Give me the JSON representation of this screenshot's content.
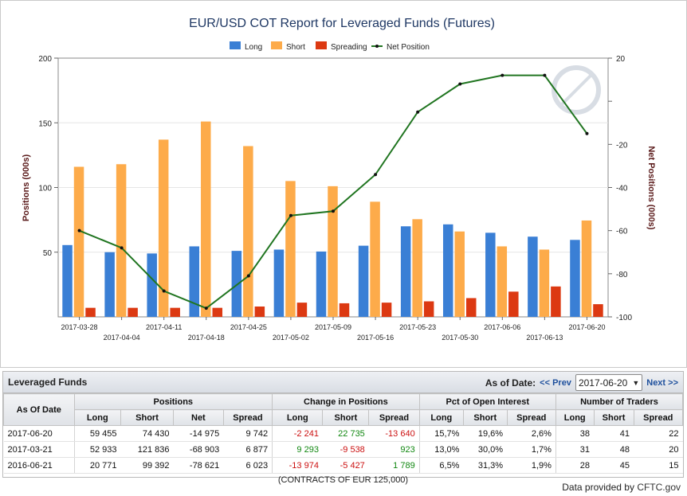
{
  "chart_data": {
    "type": "bar",
    "title": "EUR/USD COT Report for Leveraged Funds (Futures)",
    "ylabel": "Positions (000s)",
    "y2label": "Net Positions (000s)",
    "ylim": [
      0,
      200
    ],
    "y2lim": [
      -100,
      20
    ],
    "yticks": [
      50,
      100,
      150,
      200
    ],
    "y2ticks": [
      -100,
      -80,
      -60,
      -40,
      -20,
      20
    ],
    "categories": [
      "2017-03-28",
      "2017-04-04",
      "2017-04-11",
      "2017-04-18",
      "2017-04-25",
      "2017-05-02",
      "2017-05-09",
      "2017-05-16",
      "2017-05-23",
      "2017-05-30",
      "2017-06-06",
      "2017-06-13",
      "2017-06-20"
    ],
    "series": [
      {
        "name": "Long",
        "type": "bar",
        "color": "#3a7fd5",
        "values": [
          55.5,
          50,
          49,
          54.5,
          51,
          52,
          50.5,
          55,
          70,
          71.5,
          65,
          62,
          59.5
        ]
      },
      {
        "name": "Short",
        "type": "bar",
        "color": "#fdab4a",
        "values": [
          116,
          118,
          137,
          151,
          132,
          105,
          101,
          89,
          75.5,
          66,
          54.5,
          52,
          74.5
        ]
      },
      {
        "name": "Spreading",
        "type": "bar",
        "color": "#dc3912",
        "values": [
          7,
          7,
          7,
          7,
          8,
          11,
          10.5,
          11,
          12,
          14.5,
          19.5,
          23.5,
          9.8
        ]
      },
      {
        "name": "Net Position",
        "type": "line",
        "axis": "right",
        "color": "#207520",
        "values": [
          -60,
          -68,
          -88,
          -96,
          -81,
          -53,
          -51,
          -34,
          -5,
          8,
          12,
          12,
          -15
        ]
      }
    ],
    "legend": "top"
  },
  "panel": {
    "title": "Leveraged Funds",
    "as_of_label": "As of Date:",
    "prev_label": "<< Prev",
    "selected_date": "2017-06-20",
    "next_label": "Next >>",
    "groups": {
      "as_of": "As Of Date",
      "positions": "Positions",
      "change": "Change in Positions",
      "pct": "Pct of Open Interest",
      "traders": "Number of Traders"
    },
    "sub": {
      "long": "Long",
      "short": "Short",
      "net": "Net",
      "spread": "Spread"
    },
    "rows": [
      {
        "date": "2017-06-20",
        "pos_long": "59 455",
        "pos_short": "74 430",
        "pos_net": "-14 975",
        "pos_spread": "9 742",
        "chg_long": "-2 241",
        "chg_short": "22 735",
        "chg_spread": "-13 640",
        "pct_long": "15,7%",
        "pct_short": "19,6%",
        "pct_spread": "2,6%",
        "tr_long": "38",
        "tr_short": "41",
        "tr_spread": "22"
      },
      {
        "date": "2017-03-21",
        "pos_long": "52 933",
        "pos_short": "121 836",
        "pos_net": "-68 903",
        "pos_spread": "6 877",
        "chg_long": "9 293",
        "chg_short": "-9 538",
        "chg_spread": "923",
        "pct_long": "13,0%",
        "pct_short": "30,0%",
        "pct_spread": "1,7%",
        "tr_long": "31",
        "tr_short": "48",
        "tr_spread": "20"
      },
      {
        "date": "2016-06-21",
        "pos_long": "20 771",
        "pos_short": "99 392",
        "pos_net": "-78 621",
        "pos_spread": "6 023",
        "chg_long": "-13 974",
        "chg_short": "-5 427",
        "chg_spread": "1 789",
        "pct_long": "6,5%",
        "pct_short": "31,3%",
        "pct_spread": "1,9%",
        "tr_long": "28",
        "tr_short": "45",
        "tr_spread": "15"
      }
    ],
    "footnote": "(CONTRACTS OF EUR 125,000)"
  },
  "footer": {
    "provided_by": "Data provided by",
    "brand": "CFTC.gov"
  }
}
